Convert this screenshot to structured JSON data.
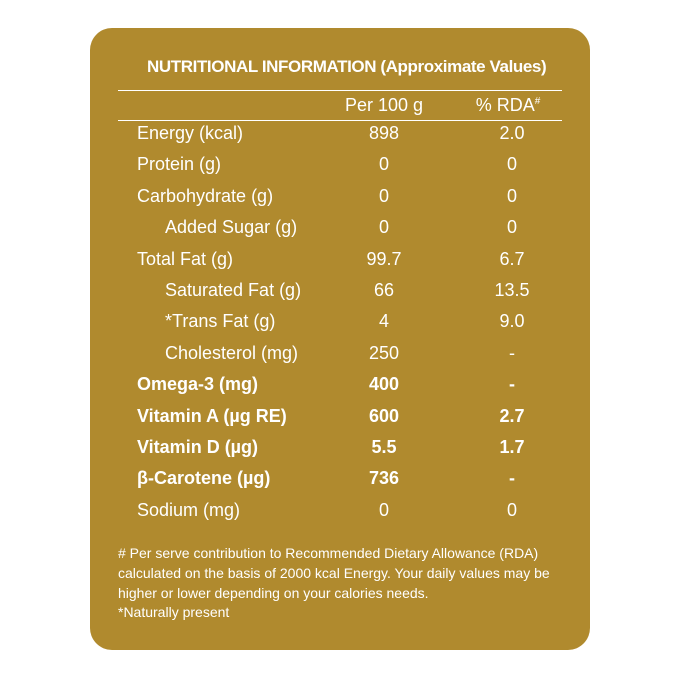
{
  "header": {
    "title": "NUTRITIONAL INFORMATION (Approximate Values)"
  },
  "table": {
    "columns": [
      "Per 100 g",
      "% RDA"
    ],
    "rda_mark": "#",
    "rows": [
      [
        "Energy (kcal)",
        "898",
        "2.0"
      ],
      [
        "Protein (g)",
        "0",
        "0"
      ],
      [
        "Carbohydrate (g)",
        "0",
        "0"
      ],
      [
        "Added Sugar (g)",
        "0",
        "0"
      ],
      [
        "Total Fat (g)",
        "99.7",
        "6.7"
      ],
      [
        "Saturated Fat (g)",
        "66",
        "13.5"
      ],
      [
        "*Trans Fat (g)",
        "4",
        "9.0"
      ],
      [
        "Cholesterol (mg)",
        "250",
        "-"
      ],
      [
        "Omega-3 (mg)",
        "400",
        "-"
      ],
      [
        "Vitamin A (µg RE)",
        "600",
        "2.7"
      ],
      [
        "Vitamin D (µg)",
        "5.5",
        "1.7"
      ],
      [
        "β-Carotene (µg)",
        "736",
        "-"
      ],
      [
        "Sodium (mg)",
        "0",
        "0"
      ]
    ]
  },
  "footnotes": [
    "# Per serve contribution to Recommended Dietary Allowance (RDA)",
    "calculated on the basis of 2000 kcal Energy. Your daily values may be",
    "higher or lower depending on your calories needs.",
    "*Naturally present"
  ]
}
